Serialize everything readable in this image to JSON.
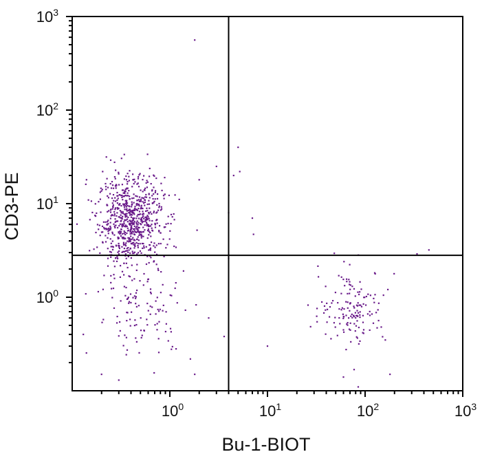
{
  "chart_data": {
    "type": "scatter",
    "title": "",
    "xlabel": "Bu-1-BIOT",
    "ylabel": "CD3-PE",
    "xscale": "log",
    "yscale": "log",
    "xlim": [
      0.1,
      1000
    ],
    "ylim": [
      0.1,
      1000
    ],
    "x_ticks": [
      {
        "base": "10",
        "exp": "0",
        "value": 1
      },
      {
        "base": "10",
        "exp": "1",
        "value": 10
      },
      {
        "base": "10",
        "exp": "2",
        "value": 100
      },
      {
        "base": "10",
        "exp": "3",
        "value": 1000
      }
    ],
    "y_ticks": [
      {
        "base": "10",
        "exp": "0",
        "value": 1
      },
      {
        "base": "10",
        "exp": "1",
        "value": 10
      },
      {
        "base": "10",
        "exp": "2",
        "value": 100
      },
      {
        "base": "10",
        "exp": "3",
        "value": 1000
      }
    ],
    "quadrant_gates": {
      "x": 4,
      "y": 2.8
    },
    "point_color": "#6a1b8a",
    "grid": false,
    "legend": "none",
    "populations": [
      {
        "center": [
          0.4,
          6.5
        ],
        "spread": [
          0.17,
          0.24
        ],
        "count": 760
      },
      {
        "center": [
          0.55,
          0.7
        ],
        "spread": [
          0.25,
          0.25
        ],
        "count": 110
      },
      {
        "center": [
          75,
          0.8
        ],
        "spread": [
          0.17,
          0.2
        ],
        "count": 150
      }
    ],
    "points": [
      [
        1.8,
        560
      ],
      [
        5,
        40
      ],
      [
        5.2,
        22
      ],
      [
        4.5,
        20
      ],
      [
        3,
        25
      ],
      [
        4,
        8
      ],
      [
        7,
        7
      ],
      [
        7.2,
        4.7
      ],
      [
        2,
        18
      ],
      [
        1.9,
        5.2
      ],
      [
        1.8,
        0.15
      ],
      [
        3.6,
        0.38
      ],
      [
        10,
        0.3
      ],
      [
        450,
        3.2
      ],
      [
        340,
        2.9
      ],
      [
        180,
        0.15
      ],
      [
        85,
        0.11
      ],
      [
        60,
        0.14
      ],
      [
        2.5,
        0.6
      ],
      [
        4,
        2.6
      ],
      [
        0.14,
        18
      ],
      [
        0.13,
        0.4
      ],
      [
        0.2,
        0.15
      ],
      [
        0.3,
        0.13
      ]
    ]
  }
}
